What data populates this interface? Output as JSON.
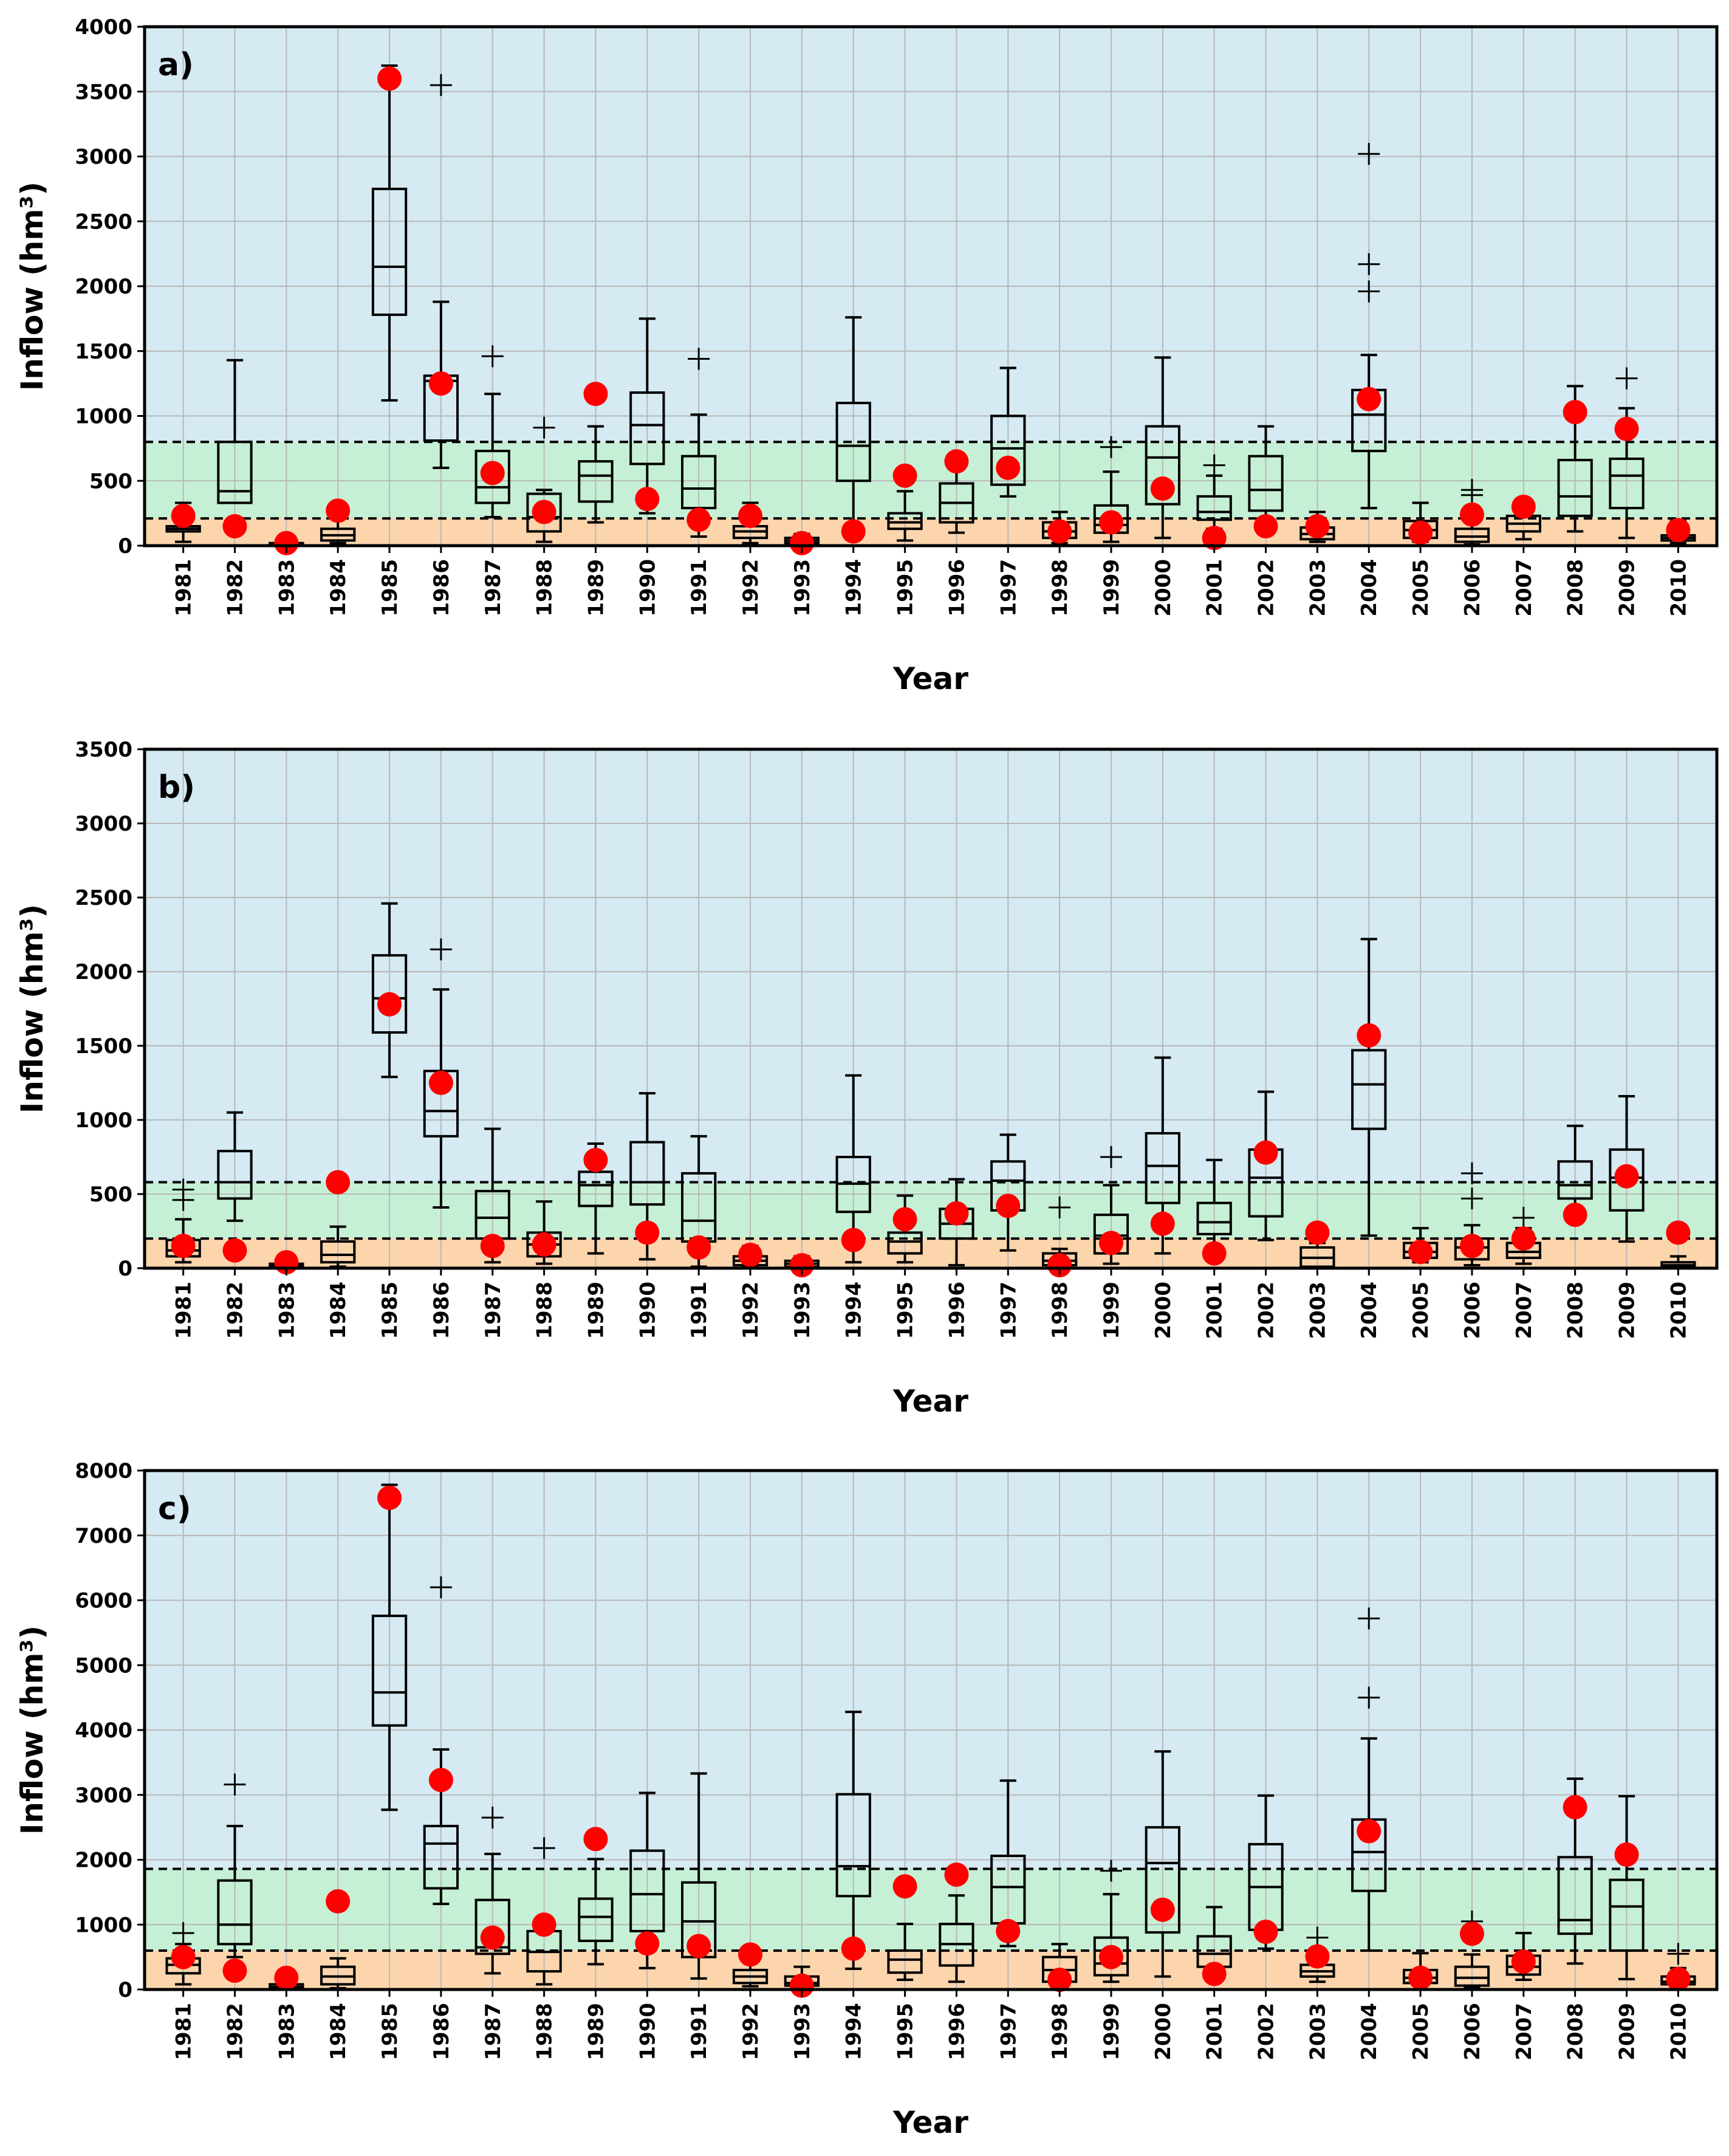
{
  "figure_caption": "",
  "colors": {
    "high_band": "#d5eaf2",
    "normal_band": "#c6f0d5",
    "low_band": "#fdd5ad",
    "grid": "#b8b8b8",
    "marker": "#ff0000",
    "box": "#000000"
  },
  "chart_data": [
    {
      "type": "boxplot",
      "panel_label": "a)",
      "title": "",
      "xlabel": "Year",
      "ylabel": "Inflow (hm³)",
      "ylim": [
        0,
        4000
      ],
      "yticks": [
        0,
        500,
        1000,
        1500,
        2000,
        2500,
        3000,
        3500,
        4000
      ],
      "grid": true,
      "thresholds": {
        "lower": 210,
        "upper": 800
      },
      "categories": [
        "1981",
        "1982",
        "1983",
        "1984",
        "1985",
        "1986",
        "1987",
        "1988",
        "1989",
        "1990",
        "1991",
        "1992",
        "1993",
        "1994",
        "1995",
        "1996",
        "1997",
        "1998",
        "1999",
        "2000",
        "2001",
        "2002",
        "2003",
        "2004",
        "2005",
        "2006",
        "2007",
        "2008",
        "2009",
        "2010"
      ],
      "boxes": [
        {
          "whislo": 30,
          "q1": 110,
          "med": 130,
          "q3": 150,
          "whishi": 330,
          "fliers": []
        },
        {
          "whislo": 330,
          "q1": 330,
          "med": 420,
          "q3": 800,
          "whishi": 1430,
          "fliers": []
        },
        {
          "whislo": 0,
          "q1": 5,
          "med": 10,
          "q3": 20,
          "whishi": 30,
          "fliers": []
        },
        {
          "whislo": 20,
          "q1": 40,
          "med": 80,
          "q3": 130,
          "whishi": 210,
          "fliers": []
        },
        {
          "whislo": 1120,
          "q1": 1780,
          "med": 2150,
          "q3": 2750,
          "whishi": 3700,
          "fliers": []
        },
        {
          "whislo": 600,
          "q1": 810,
          "med": 1270,
          "q3": 1310,
          "whishi": 1880,
          "fliers": [
            3550
          ]
        },
        {
          "whislo": 220,
          "q1": 330,
          "med": 450,
          "q3": 730,
          "whishi": 1170,
          "fliers": [
            1460
          ]
        },
        {
          "whislo": 30,
          "q1": 110,
          "med": 220,
          "q3": 400,
          "whishi": 430,
          "fliers": [
            910
          ]
        },
        {
          "whislo": 180,
          "q1": 340,
          "med": 540,
          "q3": 650,
          "whishi": 920,
          "fliers": []
        },
        {
          "whislo": 250,
          "q1": 630,
          "med": 930,
          "q3": 1180,
          "whishi": 1750,
          "fliers": []
        },
        {
          "whislo": 70,
          "q1": 290,
          "med": 440,
          "q3": 690,
          "whishi": 1010,
          "fliers": [
            1440
          ]
        },
        {
          "whislo": 20,
          "q1": 60,
          "med": 110,
          "q3": 150,
          "whishi": 330,
          "fliers": []
        },
        {
          "whislo": 5,
          "q1": 20,
          "med": 40,
          "q3": 60,
          "whishi": 90,
          "fliers": []
        },
        {
          "whislo": 80,
          "q1": 500,
          "med": 770,
          "q3": 1100,
          "whishi": 1760,
          "fliers": []
        },
        {
          "whislo": 40,
          "q1": 130,
          "med": 180,
          "q3": 250,
          "whishi": 420,
          "fliers": []
        },
        {
          "whislo": 100,
          "q1": 180,
          "med": 330,
          "q3": 480,
          "whishi": 670,
          "fliers": []
        },
        {
          "whislo": 380,
          "q1": 470,
          "med": 750,
          "q3": 1000,
          "whishi": 1370,
          "fliers": []
        },
        {
          "whislo": 20,
          "q1": 60,
          "med": 110,
          "q3": 180,
          "whishi": 260,
          "fliers": []
        },
        {
          "whislo": 30,
          "q1": 100,
          "med": 160,
          "q3": 310,
          "whishi": 570,
          "fliers": [
            760
          ]
        },
        {
          "whislo": 60,
          "q1": 320,
          "med": 680,
          "q3": 920,
          "whishi": 1450,
          "fliers": []
        },
        {
          "whislo": 130,
          "q1": 200,
          "med": 260,
          "q3": 380,
          "whishi": 540,
          "fliers": [
            620
          ]
        },
        {
          "whislo": 210,
          "q1": 270,
          "med": 430,
          "q3": 690,
          "whishi": 920,
          "fliers": []
        },
        {
          "whislo": 30,
          "q1": 50,
          "med": 90,
          "q3": 140,
          "whishi": 260,
          "fliers": []
        },
        {
          "whislo": 290,
          "q1": 730,
          "med": 1010,
          "q3": 1200,
          "whishi": 1470,
          "fliers": [
            1960,
            2170,
            3020
          ]
        },
        {
          "whislo": 30,
          "q1": 60,
          "med": 120,
          "q3": 190,
          "whishi": 330,
          "fliers": []
        },
        {
          "whislo": 10,
          "q1": 30,
          "med": 70,
          "q3": 130,
          "whishi": 290,
          "fliers": [
            390,
            430
          ]
        },
        {
          "whislo": 50,
          "q1": 110,
          "med": 170,
          "q3": 230,
          "whishi": 320,
          "fliers": []
        },
        {
          "whislo": 110,
          "q1": 230,
          "med": 380,
          "q3": 660,
          "whishi": 1230,
          "fliers": []
        },
        {
          "whislo": 60,
          "q1": 290,
          "med": 540,
          "q3": 670,
          "whishi": 1060,
          "fliers": [
            1290
          ]
        },
        {
          "whislo": 20,
          "q1": 40,
          "med": 60,
          "q3": 80,
          "whishi": 190,
          "fliers": []
        }
      ],
      "observed": [
        230,
        150,
        20,
        270,
        3600,
        1250,
        560,
        260,
        1170,
        360,
        200,
        230,
        20,
        110,
        540,
        650,
        600,
        110,
        180,
        440,
        60,
        150,
        150,
        1130,
        100,
        240,
        300,
        1030,
        900,
        120
      ]
    },
    {
      "type": "boxplot",
      "panel_label": "b)",
      "title": "",
      "xlabel": "Year",
      "ylabel": "Inflow (hm³)",
      "ylim": [
        0,
        3500
      ],
      "yticks": [
        0,
        500,
        1000,
        1500,
        2000,
        2500,
        3000,
        3500
      ],
      "grid": true,
      "thresholds": {
        "lower": 200,
        "upper": 580
      },
      "categories": [
        "1981",
        "1982",
        "1983",
        "1984",
        "1985",
        "1986",
        "1987",
        "1988",
        "1989",
        "1990",
        "1991",
        "1992",
        "1993",
        "1994",
        "1995",
        "1996",
        "1997",
        "1998",
        "1999",
        "2000",
        "2001",
        "2002",
        "2003",
        "2004",
        "2005",
        "2006",
        "2007",
        "2008",
        "2009",
        "2010"
      ],
      "boxes": [
        {
          "whislo": 40,
          "q1": 80,
          "med": 120,
          "q3": 190,
          "whishi": 330,
          "fliers": [
            460,
            530
          ]
        },
        {
          "whislo": 320,
          "q1": 470,
          "med": 580,
          "q3": 790,
          "whishi": 1050,
          "fliers": []
        },
        {
          "whislo": 5,
          "q1": 10,
          "med": 20,
          "q3": 30,
          "whishi": 40,
          "fliers": []
        },
        {
          "whislo": 10,
          "q1": 40,
          "med": 90,
          "q3": 180,
          "whishi": 280,
          "fliers": []
        },
        {
          "whislo": 1290,
          "q1": 1590,
          "med": 1820,
          "q3": 2110,
          "whishi": 2460,
          "fliers": []
        },
        {
          "whislo": 410,
          "q1": 890,
          "med": 1060,
          "q3": 1330,
          "whishi": 1880,
          "fliers": [
            2150
          ]
        },
        {
          "whislo": 40,
          "q1": 200,
          "med": 340,
          "q3": 520,
          "whishi": 940,
          "fliers": []
        },
        {
          "whislo": 30,
          "q1": 80,
          "med": 160,
          "q3": 240,
          "whishi": 450,
          "fliers": []
        },
        {
          "whislo": 100,
          "q1": 420,
          "med": 560,
          "q3": 650,
          "whishi": 840,
          "fliers": []
        },
        {
          "whislo": 60,
          "q1": 430,
          "med": 580,
          "q3": 850,
          "whishi": 1180,
          "fliers": []
        },
        {
          "whislo": 10,
          "q1": 180,
          "med": 320,
          "q3": 640,
          "whishi": 890,
          "fliers": []
        },
        {
          "whislo": 5,
          "q1": 20,
          "med": 50,
          "q3": 80,
          "whishi": 150,
          "fliers": []
        },
        {
          "whislo": 0,
          "q1": 10,
          "med": 30,
          "q3": 50,
          "whishi": 80,
          "fliers": []
        },
        {
          "whislo": 40,
          "q1": 380,
          "med": 570,
          "q3": 750,
          "whishi": 1300,
          "fliers": []
        },
        {
          "whislo": 40,
          "q1": 100,
          "med": 180,
          "q3": 240,
          "whishi": 490,
          "fliers": []
        },
        {
          "whislo": 20,
          "q1": 200,
          "med": 300,
          "q3": 400,
          "whishi": 600,
          "fliers": []
        },
        {
          "whislo": 120,
          "q1": 390,
          "med": 590,
          "q3": 720,
          "whishi": 900,
          "fliers": []
        },
        {
          "whislo": 5,
          "q1": 20,
          "med": 50,
          "q3": 100,
          "whishi": 130,
          "fliers": [
            410
          ]
        },
        {
          "whislo": 30,
          "q1": 100,
          "med": 220,
          "q3": 360,
          "whishi": 560,
          "fliers": [
            750
          ]
        },
        {
          "whislo": 100,
          "q1": 440,
          "med": 690,
          "q3": 910,
          "whishi": 1420,
          "fliers": []
        },
        {
          "whislo": 110,
          "q1": 230,
          "med": 310,
          "q3": 440,
          "whishi": 730,
          "fliers": []
        },
        {
          "whislo": 190,
          "q1": 350,
          "med": 610,
          "q3": 800,
          "whishi": 1190,
          "fliers": []
        },
        {
          "whislo": 0,
          "q1": 10,
          "med": 70,
          "q3": 140,
          "whishi": 170,
          "fliers": []
        },
        {
          "whislo": 220,
          "q1": 940,
          "med": 1240,
          "q3": 1470,
          "whishi": 2220,
          "fliers": []
        },
        {
          "whislo": 40,
          "q1": 70,
          "med": 110,
          "q3": 170,
          "whishi": 270,
          "fliers": []
        },
        {
          "whislo": 20,
          "q1": 60,
          "med": 140,
          "q3": 200,
          "whishi": 290,
          "fliers": [
            470,
            640
          ]
        },
        {
          "whislo": 30,
          "q1": 70,
          "med": 110,
          "q3": 170,
          "whishi": 270,
          "fliers": [
            340
          ]
        },
        {
          "whislo": 360,
          "q1": 470,
          "med": 560,
          "q3": 720,
          "whishi": 960,
          "fliers": []
        },
        {
          "whislo": 180,
          "q1": 390,
          "med": 610,
          "q3": 800,
          "whishi": 1160,
          "fliers": []
        },
        {
          "whislo": 5,
          "q1": 10,
          "med": 20,
          "q3": 40,
          "whishi": 80,
          "fliers": []
        }
      ],
      "observed": [
        150,
        120,
        40,
        580,
        1780,
        1250,
        150,
        160,
        730,
        240,
        140,
        90,
        20,
        190,
        330,
        370,
        420,
        20,
        170,
        300,
        100,
        780,
        240,
        1570,
        110,
        150,
        200,
        360,
        620,
        240
      ]
    },
    {
      "type": "boxplot",
      "panel_label": "c)",
      "title": "",
      "xlabel": "Year",
      "ylabel": "Inflow (hm³)",
      "ylim": [
        0,
        8000
      ],
      "yticks": [
        0,
        1000,
        2000,
        3000,
        4000,
        5000,
        6000,
        7000,
        8000
      ],
      "grid": true,
      "thresholds": {
        "lower": 600,
        "upper": 1860
      },
      "categories": [
        "1981",
        "1982",
        "1983",
        "1984",
        "1985",
        "1986",
        "1987",
        "1988",
        "1989",
        "1990",
        "1991",
        "1992",
        "1993",
        "1994",
        "1995",
        "1996",
        "1997",
        "1998",
        "1999",
        "2000",
        "2001",
        "2002",
        "2003",
        "2004",
        "2005",
        "2006",
        "2007",
        "2008",
        "2009",
        "2010"
      ],
      "boxes": [
        {
          "whislo": 80,
          "q1": 250,
          "med": 380,
          "q3": 480,
          "whishi": 700,
          "fliers": [
            870
          ]
        },
        {
          "whislo": 500,
          "q1": 700,
          "med": 1000,
          "q3": 1680,
          "whishi": 2520,
          "fliers": [
            3160
          ]
        },
        {
          "whislo": 5,
          "q1": 20,
          "med": 40,
          "q3": 80,
          "whishi": 150,
          "fliers": []
        },
        {
          "whislo": 20,
          "q1": 80,
          "med": 200,
          "q3": 350,
          "whishi": 480,
          "fliers": []
        },
        {
          "whislo": 2770,
          "q1": 4070,
          "med": 4580,
          "q3": 5760,
          "whishi": 7780,
          "fliers": []
        },
        {
          "whislo": 1320,
          "q1": 1560,
          "med": 2250,
          "q3": 2520,
          "whishi": 3700,
          "fliers": [
            6200
          ]
        },
        {
          "whislo": 250,
          "q1": 550,
          "med": 650,
          "q3": 1380,
          "whishi": 2090,
          "fliers": [
            2650
          ]
        },
        {
          "whislo": 80,
          "q1": 280,
          "med": 580,
          "q3": 900,
          "whishi": 1020,
          "fliers": [
            2180
          ]
        },
        {
          "whislo": 390,
          "q1": 750,
          "med": 1120,
          "q3": 1400,
          "whishi": 2010,
          "fliers": []
        },
        {
          "whislo": 330,
          "q1": 900,
          "med": 1470,
          "q3": 2140,
          "whishi": 3030,
          "fliers": []
        },
        {
          "whislo": 170,
          "q1": 500,
          "med": 1050,
          "q3": 1650,
          "whishi": 3330,
          "fliers": []
        },
        {
          "whislo": 50,
          "q1": 100,
          "med": 200,
          "q3": 300,
          "whishi": 540,
          "fliers": []
        },
        {
          "whislo": 20,
          "q1": 60,
          "med": 100,
          "q3": 200,
          "whishi": 350,
          "fliers": []
        },
        {
          "whislo": 320,
          "q1": 1440,
          "med": 1900,
          "q3": 3010,
          "whishi": 4280,
          "fliers": []
        },
        {
          "whislo": 150,
          "q1": 260,
          "med": 460,
          "q3": 600,
          "whishi": 1010,
          "fliers": []
        },
        {
          "whislo": 120,
          "q1": 370,
          "med": 700,
          "q3": 1010,
          "whishi": 1450,
          "fliers": []
        },
        {
          "whislo": 670,
          "q1": 1020,
          "med": 1580,
          "q3": 2060,
          "whishi": 3220,
          "fliers": []
        },
        {
          "whislo": 40,
          "q1": 120,
          "med": 300,
          "q3": 500,
          "whishi": 700,
          "fliers": []
        },
        {
          "whislo": 120,
          "q1": 220,
          "med": 400,
          "q3": 800,
          "whishi": 1470,
          "fliers": [
            1830
          ]
        },
        {
          "whislo": 200,
          "q1": 880,
          "med": 1950,
          "q3": 2500,
          "whishi": 3670,
          "fliers": []
        },
        {
          "whislo": 150,
          "q1": 350,
          "med": 550,
          "q3": 820,
          "whishi": 1270,
          "fliers": []
        },
        {
          "whislo": 630,
          "q1": 920,
          "med": 1580,
          "q3": 2240,
          "whishi": 2990,
          "fliers": []
        },
        {
          "whislo": 120,
          "q1": 200,
          "med": 280,
          "q3": 380,
          "whishi": 600,
          "fliers": [
            800
          ]
        },
        {
          "whislo": 600,
          "q1": 1520,
          "med": 2120,
          "q3": 2620,
          "whishi": 3870,
          "fliers": [
            4500,
            5720
          ]
        },
        {
          "whislo": 70,
          "q1": 100,
          "med": 180,
          "q3": 300,
          "whishi": 560,
          "fliers": []
        },
        {
          "whislo": 40,
          "q1": 60,
          "med": 180,
          "q3": 350,
          "whishi": 540,
          "fliers": [
            1050
          ]
        },
        {
          "whislo": 150,
          "q1": 230,
          "med": 350,
          "q3": 520,
          "whishi": 870,
          "fliers": []
        },
        {
          "whislo": 400,
          "q1": 860,
          "med": 1070,
          "q3": 2040,
          "whishi": 3250,
          "fliers": []
        },
        {
          "whislo": 160,
          "q1": 600,
          "med": 1280,
          "q3": 1690,
          "whishi": 2980,
          "fliers": []
        },
        {
          "whislo": 40,
          "q1": 80,
          "med": 120,
          "q3": 200,
          "whishi": 330,
          "fliers": [
            550
          ]
        }
      ],
      "observed": [
        500,
        290,
        180,
        1360,
        7580,
        3230,
        800,
        1000,
        2320,
        710,
        670,
        540,
        60,
        630,
        1590,
        1770,
        900,
        150,
        500,
        1230,
        240,
        890,
        510,
        2440,
        180,
        860,
        430,
        2810,
        2080,
        160
      ]
    }
  ]
}
